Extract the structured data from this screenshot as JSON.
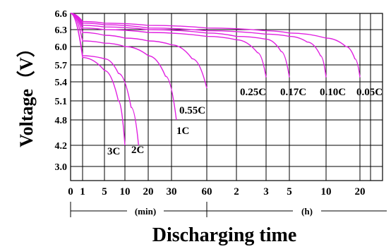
{
  "chart_data": {
    "type": "line",
    "title": "",
    "xlabel": "Discharging time",
    "ylabel": "Voltage（V）",
    "x_units": [
      "(min)",
      "(h)"
    ],
    "x_ticks": [
      "0",
      "1",
      "5",
      "10",
      "20",
      "30",
      "60",
      "2",
      "3",
      "5",
      "10",
      "20"
    ],
    "x_tick_minutes": [
      0,
      1,
      5,
      10,
      20,
      30,
      60,
      120,
      180,
      300,
      600,
      1200
    ],
    "y_ticks": [
      "6.6",
      "6.3",
      "6.0",
      "5.7",
      "5.4",
      "5.1",
      "4.8",
      "4.2",
      "3.0"
    ],
    "x_unit": "minutes",
    "grid": true,
    "line_color": "#e020e0",
    "series": [
      {
        "label": "0.05C",
        "points": [
          [
            0,
            6.6
          ],
          [
            1,
            6.45
          ],
          [
            5,
            6.42
          ],
          [
            20,
            6.38
          ],
          [
            60,
            6.33
          ],
          [
            180,
            6.28
          ],
          [
            300,
            6.24
          ],
          [
            600,
            6.15
          ],
          [
            900,
            6.0
          ],
          [
            1080,
            5.8
          ],
          [
            1200,
            5.48
          ]
        ]
      },
      {
        "label": "0.10C",
        "points": [
          [
            0,
            6.6
          ],
          [
            1,
            6.42
          ],
          [
            5,
            6.39
          ],
          [
            20,
            6.33
          ],
          [
            60,
            6.28
          ],
          [
            180,
            6.22
          ],
          [
            300,
            6.18
          ],
          [
            420,
            6.08
          ],
          [
            540,
            5.85
          ],
          [
            600,
            5.48
          ]
        ]
      },
      {
        "label": "0.17C",
        "points": [
          [
            0,
            6.6
          ],
          [
            1,
            6.38
          ],
          [
            5,
            6.35
          ],
          [
            20,
            6.3
          ],
          [
            60,
            6.24
          ],
          [
            120,
            6.18
          ],
          [
            180,
            6.13
          ],
          [
            250,
            5.92
          ],
          [
            300,
            5.48
          ]
        ]
      },
      {
        "label": "0.25C",
        "points": [
          [
            0,
            6.6
          ],
          [
            1,
            6.33
          ],
          [
            5,
            6.3
          ],
          [
            20,
            6.25
          ],
          [
            60,
            6.18
          ],
          [
            120,
            6.12
          ],
          [
            160,
            5.9
          ],
          [
            180,
            5.48
          ]
        ]
      },
      {
        "label": "0.55C",
        "points": [
          [
            0,
            6.6
          ],
          [
            1,
            6.25
          ],
          [
            5,
            6.2
          ],
          [
            10,
            6.15
          ],
          [
            20,
            6.1
          ],
          [
            30,
            6.03
          ],
          [
            45,
            5.8
          ],
          [
            60,
            5.3
          ]
        ]
      },
      {
        "label": "1C",
        "points": [
          [
            0,
            6.6
          ],
          [
            1,
            6.1
          ],
          [
            5,
            6.06
          ],
          [
            10,
            6.0
          ],
          [
            20,
            5.85
          ],
          [
            27,
            5.5
          ],
          [
            33,
            4.8
          ]
        ]
      },
      {
        "label": "2C",
        "points": [
          [
            0,
            6.6
          ],
          [
            1,
            5.85
          ],
          [
            5,
            5.8
          ],
          [
            8,
            5.55
          ],
          [
            12,
            5.0
          ],
          [
            15,
            4.2
          ]
        ]
      },
      {
        "label": "3C",
        "points": [
          [
            0,
            6.6
          ],
          [
            1,
            5.82
          ],
          [
            5,
            5.6
          ],
          [
            8,
            5.1
          ],
          [
            10,
            4.2
          ]
        ]
      }
    ]
  }
}
